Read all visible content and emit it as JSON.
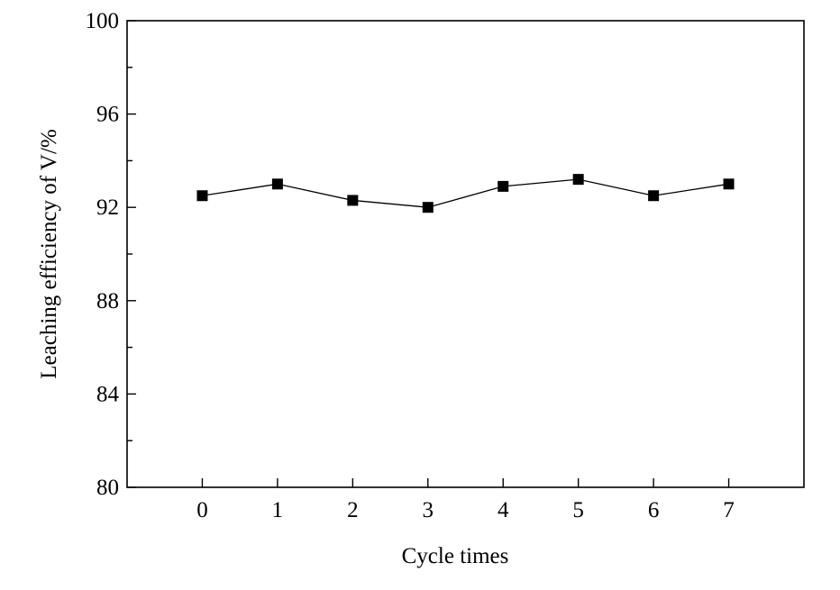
{
  "chart_data": {
    "type": "line",
    "xlabel": "Cycle times",
    "ylabel": "Leaching efficiency of V/%",
    "x": [
      0,
      1,
      2,
      3,
      4,
      5,
      6,
      7
    ],
    "xticks": [
      "0",
      "1",
      "2",
      "3",
      "4",
      "5",
      "6",
      "7"
    ],
    "xlim": [
      -1,
      8
    ],
    "ylim": [
      80,
      100
    ],
    "yticks": [
      "80",
      "84",
      "88",
      "92",
      "96",
      "100"
    ],
    "series": [
      {
        "values": [
          92.5,
          93.0,
          92.3,
          92.0,
          92.9,
          93.2,
          92.5,
          93.0
        ],
        "marker": "square",
        "color": "#000000"
      }
    ],
    "grid": false
  }
}
